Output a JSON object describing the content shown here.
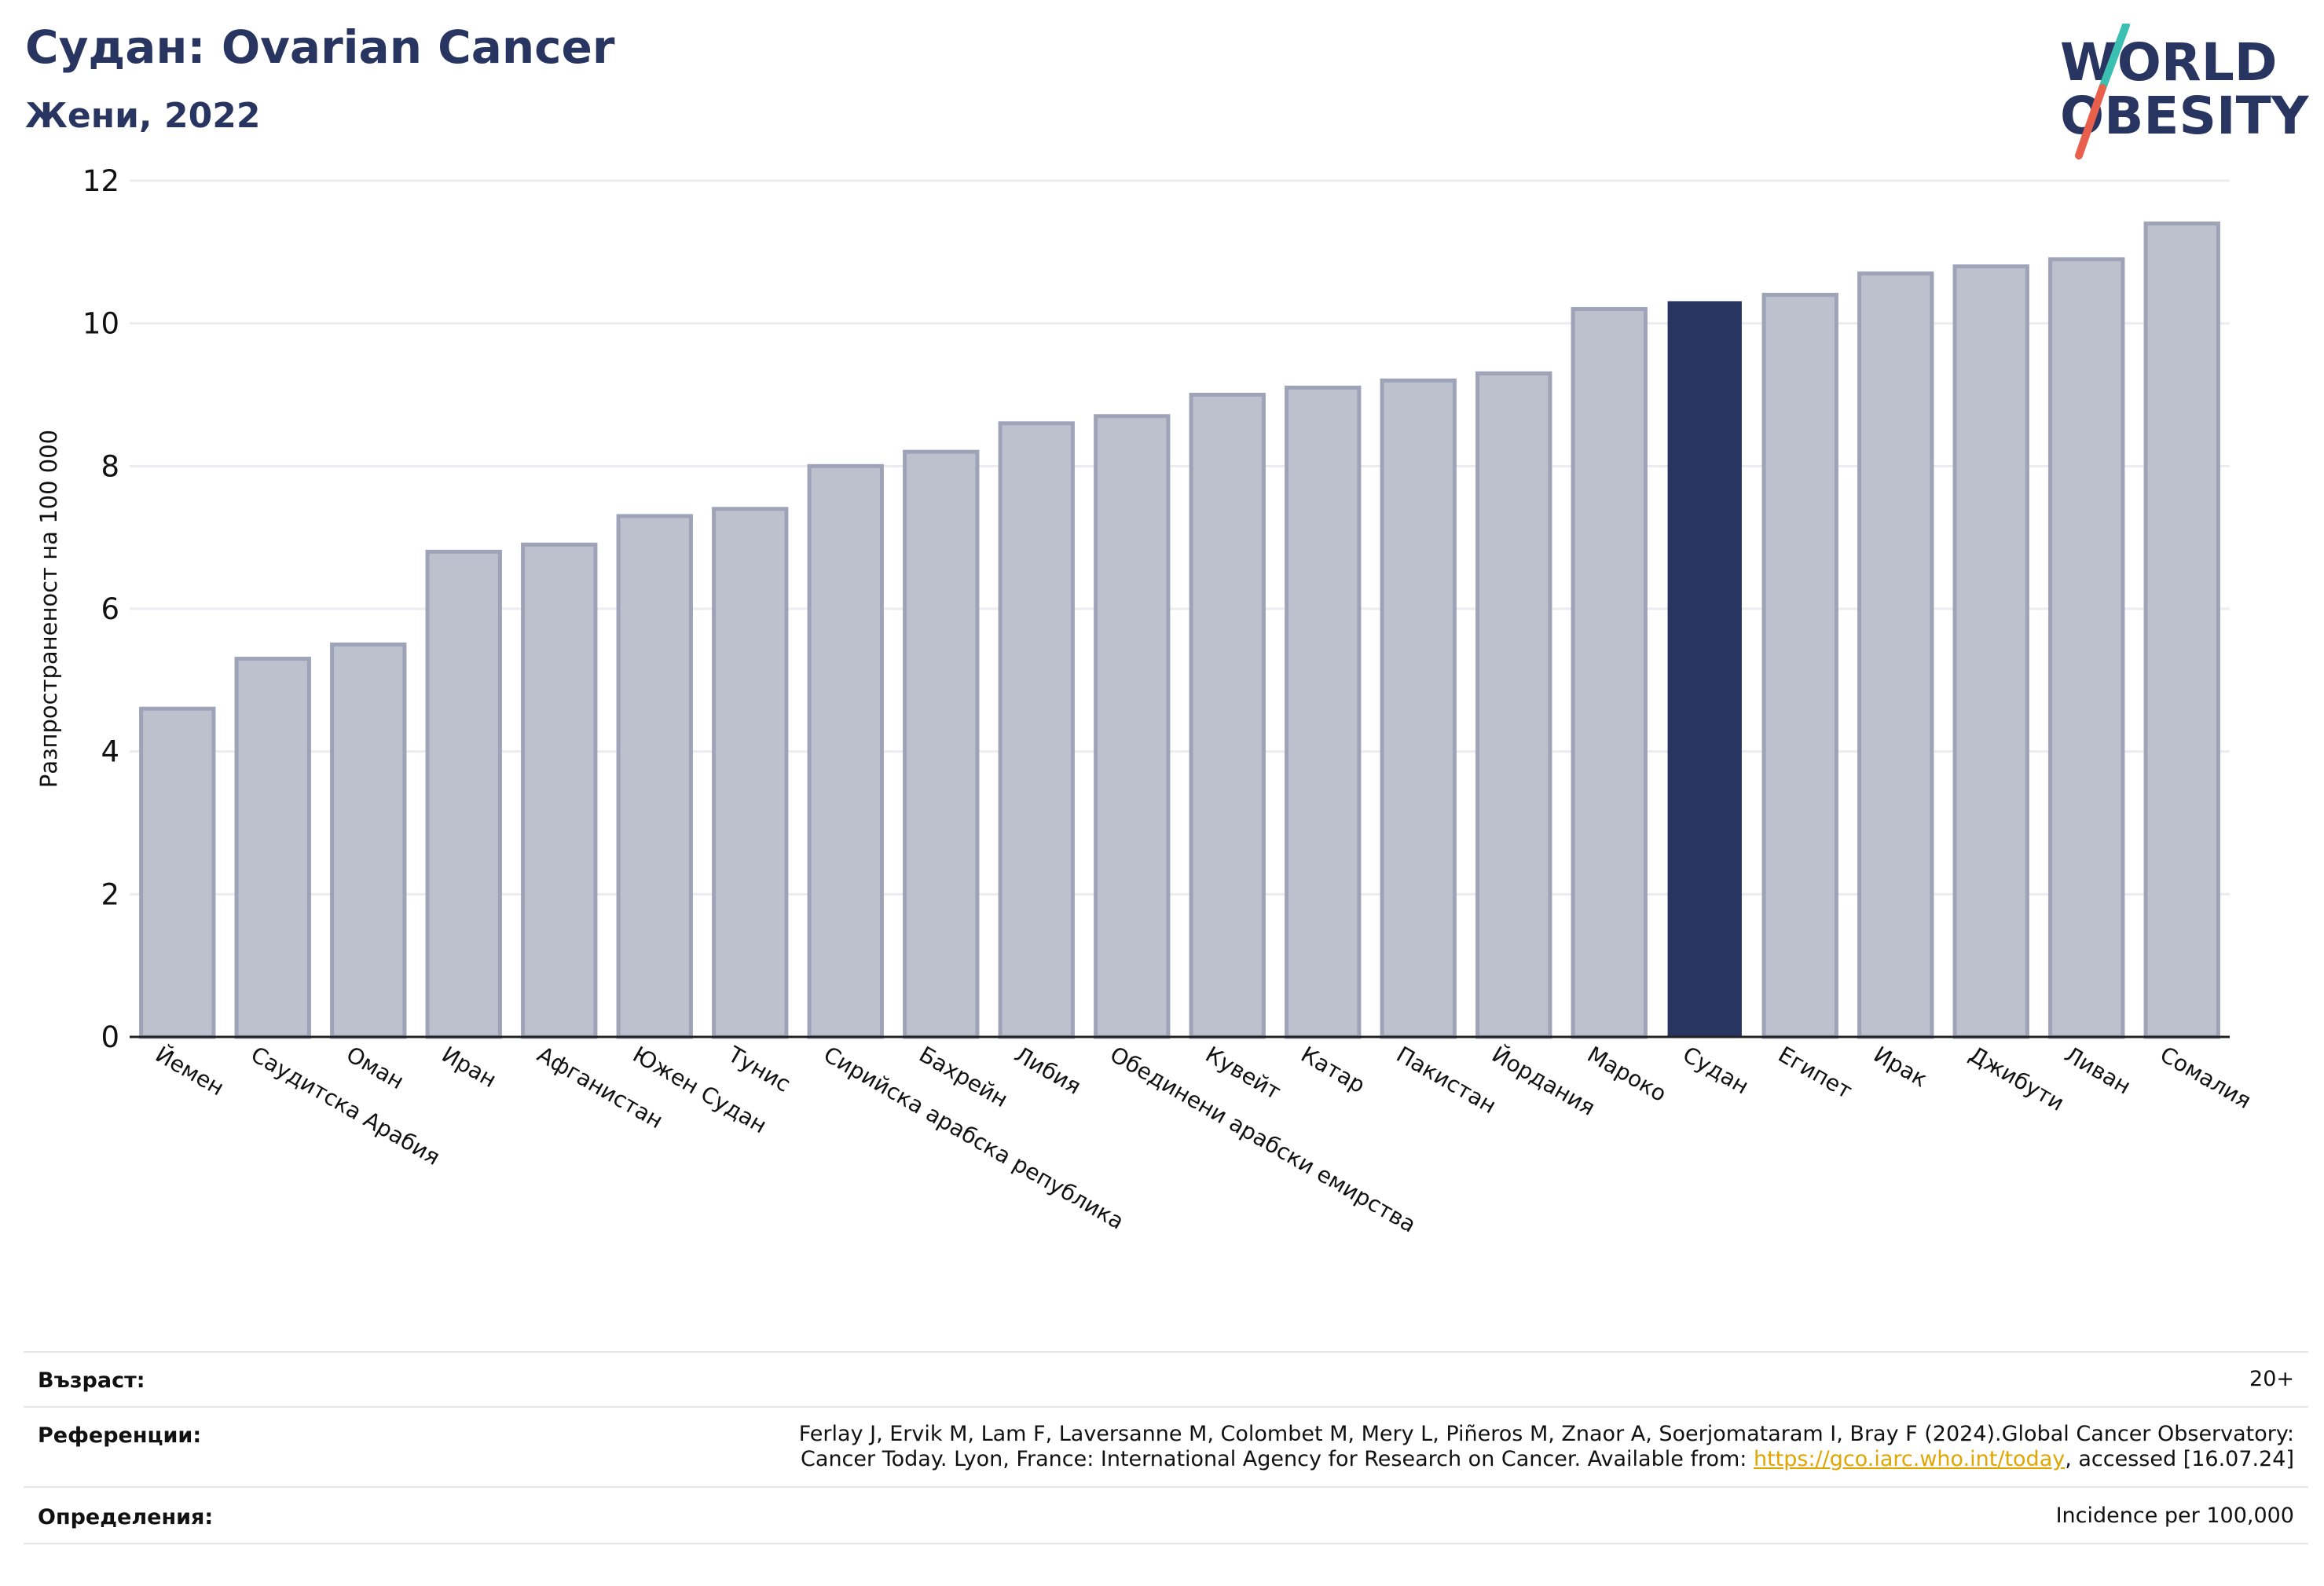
{
  "title": "Судан: Ovarian Cancer",
  "subtitle": "Жени, 2022",
  "logo": {
    "line1": "WORLD",
    "line2": "OBESITY",
    "text_color": "#283561",
    "slash_top_color": "#3bbfb0",
    "slash_bottom_color": "#e8604c"
  },
  "colors": {
    "bar": "#bdc0cd",
    "bar_edge": "#9ea3b8",
    "highlight": "#283561",
    "grid": "#ececf0",
    "axis": "#222222"
  },
  "chart_data": {
    "type": "bar",
    "ylabel": "Разпространеност  на 100 000",
    "xlabel": "",
    "ylim": [
      0,
      12
    ],
    "yticks": [
      0,
      2,
      4,
      6,
      8,
      10,
      12
    ],
    "grid": "horizontal",
    "highlight_category": "Судан",
    "categories": [
      "Йемен",
      "Саудитска Арабия",
      "Оман",
      "Иран",
      "Афганистан",
      "Южен Судан",
      "Тунис",
      "Сирийска арабска република",
      "Бахрейн",
      "Либия",
      "Обединени арабски емирства",
      "Кувейт",
      "Катар",
      "Пакистан",
      "Йордания",
      "Мароко",
      "Судан",
      "Египет",
      "Ирак",
      "Джибути",
      "Ливан",
      "Сомалия"
    ],
    "values": [
      4.6,
      5.3,
      5.5,
      6.8,
      6.9,
      7.3,
      7.4,
      8.0,
      8.2,
      8.6,
      8.7,
      9.0,
      9.1,
      9.2,
      9.3,
      10.2,
      10.3,
      10.4,
      10.7,
      10.8,
      10.9,
      11.4
    ]
  },
  "footer": {
    "age_label": "Възраст:",
    "age_value": "20+",
    "refs_label": "Референции:",
    "refs_line1": "Ferlay J, Ervik M, Lam F, Laversanne M, Colombet M, Mery L, Piñeros M, Znaor A, Soerjomataram I, Bray F (2024).Global Cancer Observatory:",
    "refs_line2_pre": "Cancer Today. Lyon, France: International Agency for Research on Cancer. Available from: ",
    "refs_link": "https://gco.iarc.who.int/today",
    "refs_line2_post": ", accessed [16.07.24]",
    "defs_label": "Определения:",
    "defs_value": "Incidence per 100,000"
  }
}
